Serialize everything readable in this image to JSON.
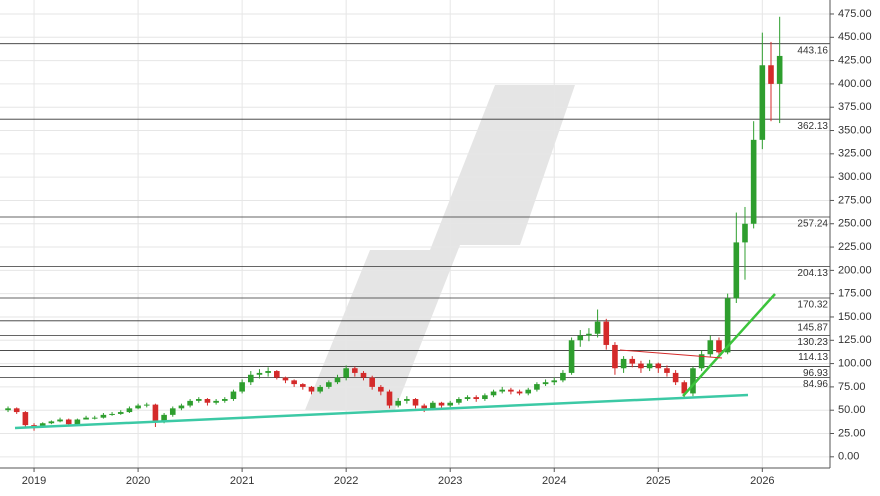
{
  "chart_data": {
    "type": "candlestick",
    "categories": [
      null,
      null,
      null,
      "2019",
      null,
      null,
      null,
      null,
      null,
      null,
      null,
      null,
      null,
      null,
      null,
      "2020",
      null,
      null,
      null,
      null,
      null,
      null,
      null,
      null,
      null,
      null,
      null,
      "2021",
      null,
      null,
      null,
      null,
      null,
      null,
      null,
      null,
      null,
      null,
      null,
      "2022",
      null,
      null,
      null,
      null,
      null,
      null,
      null,
      null,
      null,
      null,
      null,
      "2023",
      null,
      null,
      null,
      null,
      null,
      null,
      null,
      null,
      null,
      null,
      null,
      "2024",
      null,
      null,
      null,
      null,
      null,
      null,
      null,
      null,
      null,
      null,
      null,
      "2025",
      null,
      null,
      null,
      null,
      null,
      null,
      null,
      null,
      null,
      null,
      null,
      "2026",
      null,
      null
    ],
    "open": [
      50,
      52,
      48,
      34,
      32,
      36,
      38,
      40,
      35,
      40,
      42,
      42,
      45,
      46,
      48,
      52,
      55,
      56,
      38,
      45,
      52,
      55,
      60,
      62,
      58,
      60,
      62,
      70,
      80,
      88,
      90,
      92,
      85,
      82,
      78,
      75,
      70,
      75,
      80,
      85,
      95,
      90,
      85,
      75,
      70,
      55,
      60,
      62,
      55,
      52,
      58,
      55,
      58,
      62,
      64,
      62,
      66,
      70,
      72,
      70,
      68,
      72,
      78,
      80,
      82,
      90,
      125,
      130,
      132,
      145,
      120,
      95,
      105,
      100,
      95,
      100,
      95,
      90,
      80,
      68,
      95,
      110,
      125,
      112,
      170,
      230,
      250,
      340,
      420,
      400
    ],
    "high": [
      54,
      53,
      49,
      36,
      37,
      39,
      42,
      41,
      41,
      44,
      44,
      47,
      48,
      50,
      54,
      57,
      58,
      57,
      47,
      54,
      57,
      62,
      64,
      63,
      62,
      64,
      72,
      83,
      92,
      94,
      96,
      93,
      86,
      83,
      79,
      76,
      77,
      82,
      88,
      98,
      97,
      92,
      87,
      77,
      72,
      63,
      65,
      63,
      57,
      60,
      59,
      60,
      64,
      66,
      66,
      68,
      72,
      75,
      74,
      72,
      74,
      80,
      83,
      85,
      93,
      128,
      136,
      138,
      158,
      148,
      123,
      108,
      108,
      103,
      104,
      101,
      98,
      93,
      82,
      97,
      114,
      130,
      128,
      175,
      262,
      268,
      360,
      455,
      445,
      472
    ],
    "low": [
      48,
      46,
      32,
      28,
      31,
      35,
      37,
      33,
      34,
      40,
      40,
      41,
      44,
      45,
      47,
      51,
      53,
      32,
      36,
      43,
      50,
      53,
      58,
      55,
      56,
      58,
      60,
      68,
      77,
      84,
      86,
      83,
      79,
      75,
      72,
      67,
      68,
      73,
      78,
      82,
      86,
      82,
      72,
      66,
      52,
      53,
      57,
      52,
      48,
      50,
      52,
      53,
      56,
      60,
      59,
      60,
      64,
      68,
      67,
      66,
      66,
      70,
      76,
      77,
      80,
      88,
      118,
      124,
      128,
      115,
      88,
      90,
      96,
      90,
      92,
      90,
      86,
      77,
      62,
      65,
      92,
      107,
      108,
      110,
      165,
      190,
      245,
      330,
      360,
      358
    ],
    "close": [
      52,
      48,
      34,
      32,
      36,
      38,
      40,
      35,
      40,
      42,
      42,
      45,
      46,
      48,
      52,
      55,
      56,
      38,
      45,
      52,
      55,
      60,
      62,
      58,
      60,
      62,
      70,
      80,
      88,
      90,
      92,
      85,
      82,
      78,
      75,
      70,
      75,
      80,
      85,
      95,
      90,
      85,
      75,
      70,
      55,
      60,
      62,
      55,
      52,
      58,
      55,
      58,
      62,
      64,
      62,
      66,
      70,
      72,
      70,
      68,
      72,
      78,
      80,
      82,
      90,
      125,
      130,
      132,
      145,
      120,
      95,
      105,
      100,
      95,
      100,
      95,
      90,
      80,
      68,
      95,
      110,
      125,
      112,
      170,
      230,
      250,
      340,
      420,
      400,
      430
    ],
    "up_color": "#2e9e2e",
    "down_color": "#d42a2a",
    "levels": [
      443.16,
      362.13,
      257.24,
      204.13,
      170.32,
      145.87,
      130.23,
      114.13,
      96.93,
      84.96
    ],
    "ylim": [
      -12,
      490
    ],
    "yticks": [
      {
        "value": 0,
        "label": "0.00"
      },
      {
        "value": 25,
        "label": "25.00"
      },
      {
        "value": 50,
        "label": "50.00"
      },
      {
        "value": 75,
        "label": "75.00"
      },
      {
        "value": 100,
        "label": "100.00"
      },
      {
        "value": 125,
        "label": "125.00"
      },
      {
        "value": 150,
        "label": "150.00"
      },
      {
        "value": 175,
        "label": "175.00"
      },
      {
        "value": 200,
        "label": "200.00"
      },
      {
        "value": 225,
        "label": "225.00"
      },
      {
        "value": 250,
        "label": "250.00"
      },
      {
        "value": 275,
        "label": "275.00"
      },
      {
        "value": 300,
        "label": "300.00"
      },
      {
        "value": 325,
        "label": "325.00"
      },
      {
        "value": 350,
        "label": "350.00"
      },
      {
        "value": 375,
        "label": "375.00"
      },
      {
        "value": 400,
        "label": "400.00"
      },
      {
        "value": 425,
        "label": "425.00"
      },
      {
        "value": 450,
        "label": "450.00"
      },
      {
        "value": 475,
        "label": "475.00"
      }
    ],
    "grid": true
  }
}
